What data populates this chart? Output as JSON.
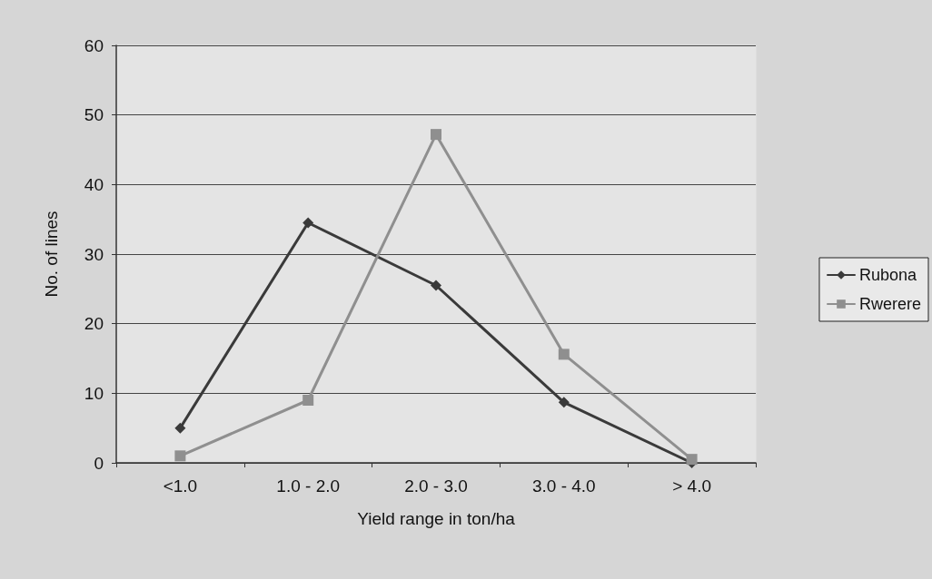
{
  "chart_data": {
    "type": "line",
    "xlabel": "Yield range in ton/ha",
    "ylabel": "No. of lines",
    "categories": [
      "<1.0",
      "1.0 - 2.0",
      "2.0 - 3.0",
      "3.0 - 4.0",
      "> 4.0"
    ],
    "series": [
      {
        "name": "Rubona",
        "color": "#3a3a3a",
        "marker": "diamond",
        "values": [
          5,
          34.5,
          25.5,
          8.7,
          0
        ]
      },
      {
        "name": "Rwerere",
        "color": "#8f8f8f",
        "marker": "square",
        "values": [
          1,
          9,
          47.2,
          15.6,
          0.5
        ]
      }
    ],
    "ylim": [
      0,
      60
    ],
    "yticks": [
      0,
      10,
      20,
      30,
      40,
      50,
      60
    ],
    "grid": "y",
    "legend": "right",
    "line_style": "solid"
  }
}
